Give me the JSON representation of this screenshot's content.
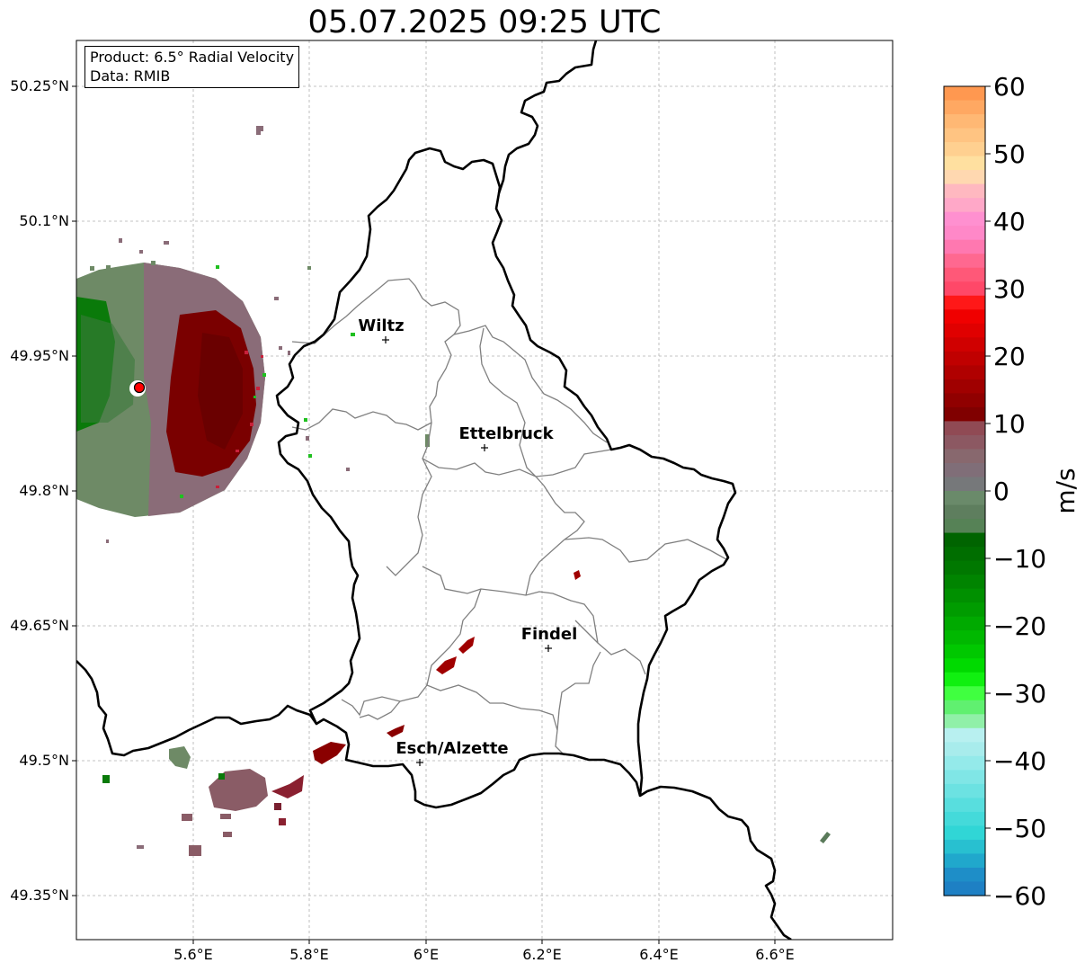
{
  "title": "05.07.2025 09:25 UTC",
  "info": {
    "product": "Product: 6.5° Radial Velocity",
    "data": "Data: RMIB"
  },
  "map": {
    "lon_ticks": [
      "5.6°E",
      "5.8°E",
      "6°E",
      "6.2°E",
      "6.4°E",
      "6.6°E"
    ],
    "lat_ticks": [
      "50.25°N",
      "50.1°N",
      "49.95°N",
      "49.8°N",
      "49.65°N",
      "49.5°N",
      "49.35°N"
    ],
    "extent": {
      "lon_min": 5.4,
      "lon_max": 6.8,
      "lat_min": 49.3,
      "lat_max": 50.3
    },
    "cities": [
      {
        "name": "Wiltz",
        "lon": 5.93,
        "lat": 49.97
      },
      {
        "name": "Ettelbruck",
        "lon": 6.1,
        "lat": 49.85
      },
      {
        "name": "Findel",
        "lon": 6.21,
        "lat": 49.627
      },
      {
        "name": "Esch/Alzette",
        "lon": 5.99,
        "lat": 49.5
      }
    ],
    "radar_site": {
      "lon": 5.505,
      "lat": 49.914
    }
  },
  "colorbar": {
    "label": "m/s",
    "ticks": [
      "60",
      "50",
      "40",
      "30",
      "20",
      "10",
      "0",
      "−10",
      "−20",
      "−30",
      "−40",
      "−50",
      "−60"
    ],
    "min": -60,
    "max": 60
  },
  "colors": {
    "border": "#000000",
    "cantons": "#808080",
    "grid": "#b0b0b0",
    "receding": "#7a0000",
    "approaching": "#007000",
    "near_zero": "#8c6e78"
  }
}
